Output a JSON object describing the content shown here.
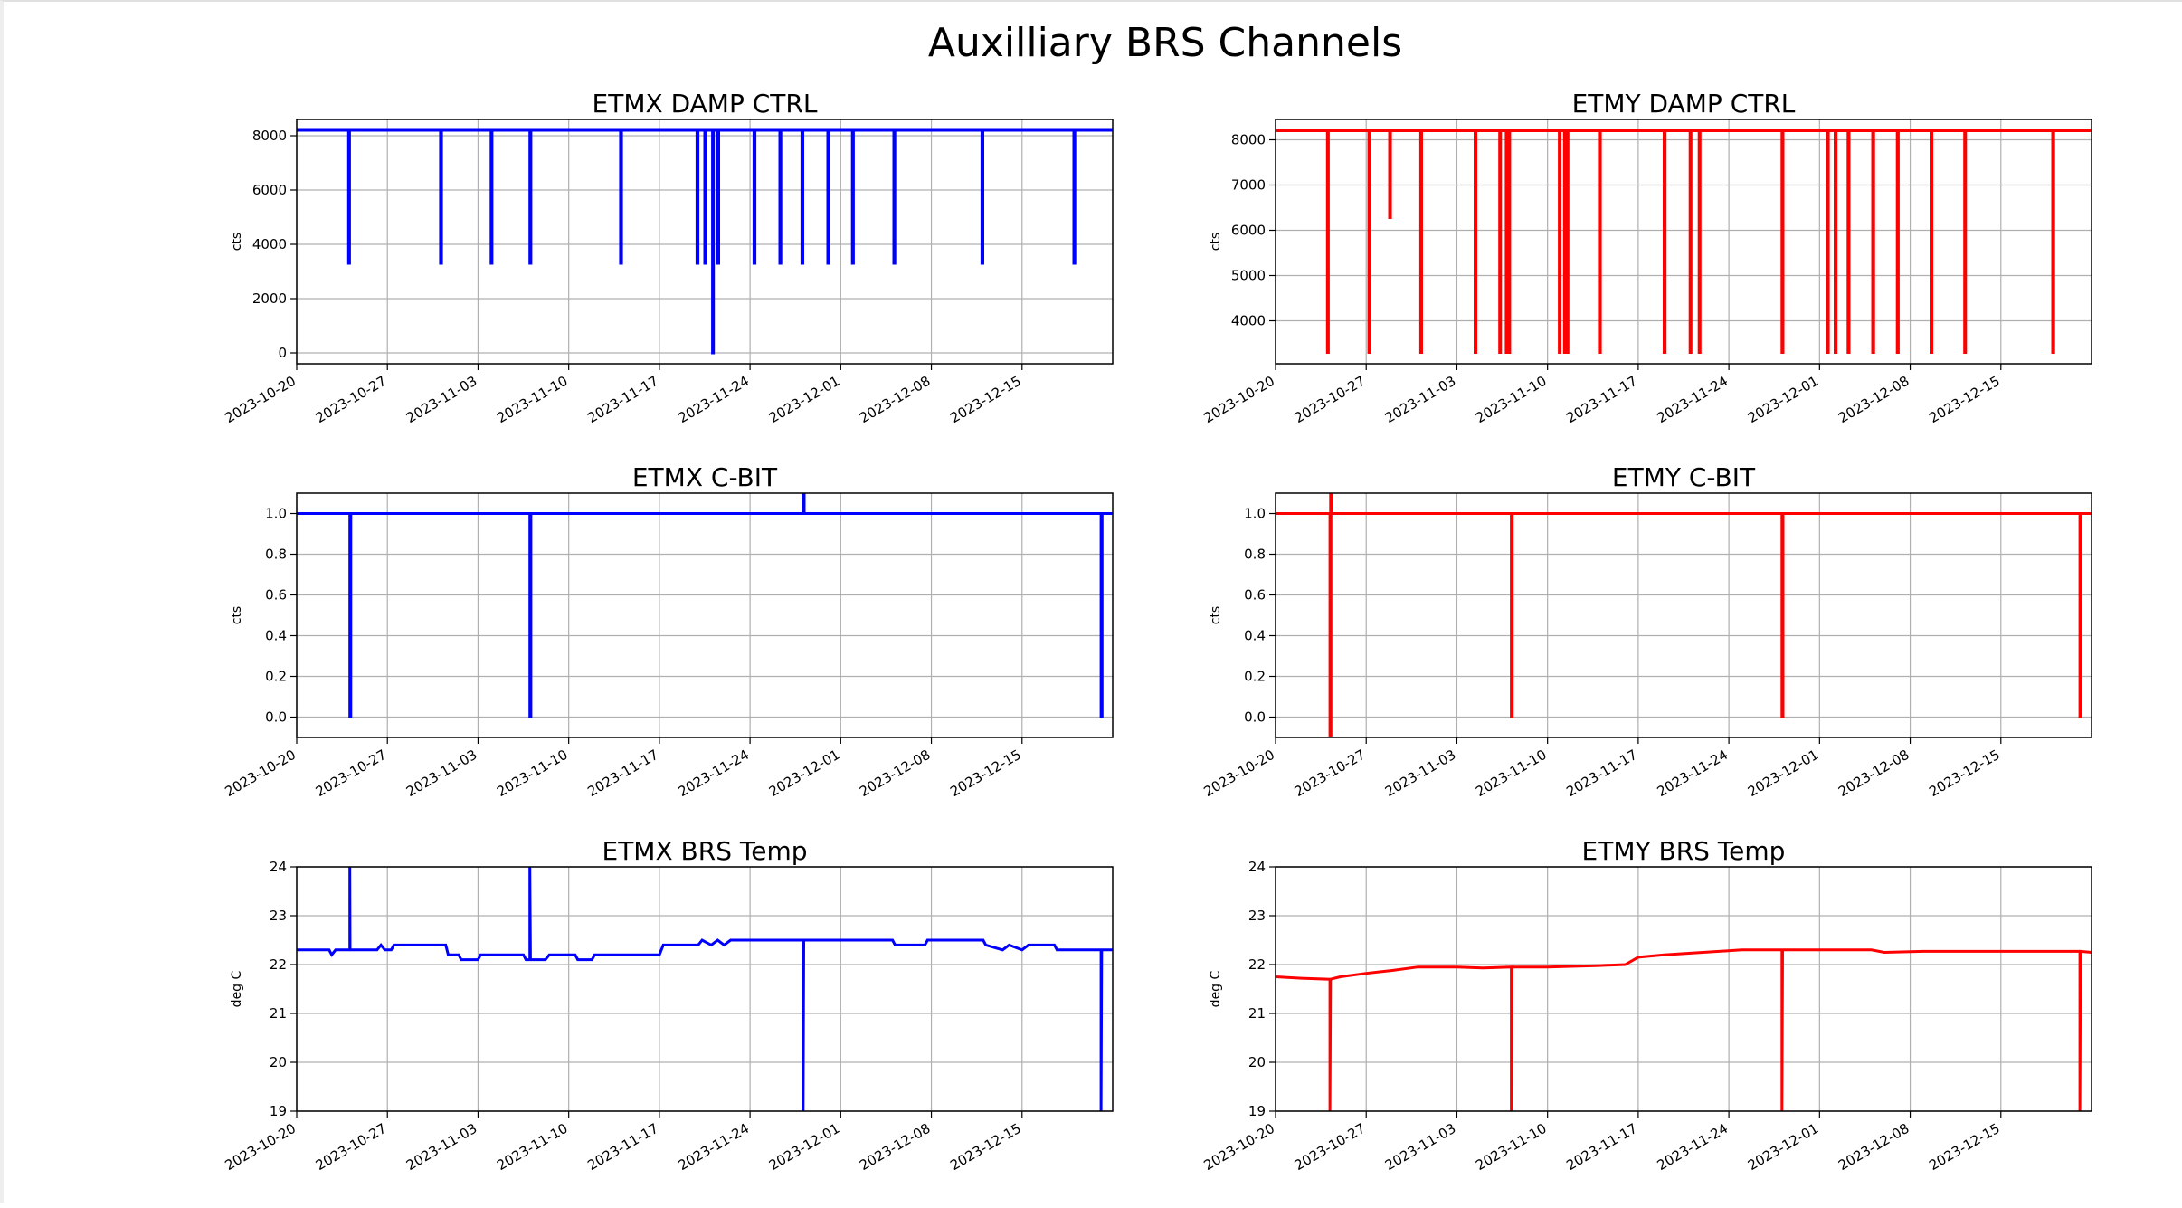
{
  "figure_title": "Auxilliary BRS Channels",
  "chart_data": [
    {
      "type": "line",
      "title": "ETMX DAMP CTRL",
      "ylabel": "cts",
      "color": "#0000ff",
      "x_unit": "days since 2023-10-20",
      "xlim": [
        0,
        63
      ],
      "ylim": [
        -400,
        8600
      ],
      "yticks": [
        0,
        2000,
        4000,
        6000,
        8000
      ],
      "grid": true,
      "baseline": 8200,
      "drops": [
        [
          4.0,
          3300
        ],
        [
          11.1,
          3300
        ],
        [
          15.0,
          3300
        ],
        [
          18.0,
          3300
        ],
        [
          25.0,
          3300
        ],
        [
          30.9,
          3300
        ],
        [
          31.5,
          3300
        ],
        [
          32.1,
          0
        ],
        [
          32.5,
          3300
        ],
        [
          35.3,
          3300
        ],
        [
          37.3,
          3300
        ],
        [
          39.0,
          3300
        ],
        [
          41.0,
          3300
        ],
        [
          42.9,
          3300
        ],
        [
          46.1,
          3300
        ],
        [
          52.9,
          3300
        ],
        [
          60.0,
          3300
        ]
      ]
    },
    {
      "type": "line",
      "title": "ETMY DAMP CTRL",
      "ylabel": "cts",
      "color": "#ff0000",
      "x_unit": "days since 2023-10-20",
      "xlim": [
        0,
        63
      ],
      "ylim": [
        3050,
        8450
      ],
      "yticks": [
        4000,
        5000,
        6000,
        7000,
        8000
      ],
      "grid": true,
      "baseline": 8200,
      "drops": [
        [
          4.0,
          3300
        ],
        [
          7.2,
          3300
        ],
        [
          8.8,
          6280
        ],
        [
          11.2,
          3300
        ],
        [
          15.4,
          3300
        ],
        [
          17.3,
          3300
        ],
        [
          17.8,
          3300
        ],
        [
          18.0,
          3300
        ],
        [
          21.9,
          3300
        ],
        [
          22.3,
          3300
        ],
        [
          22.5,
          3300
        ],
        [
          25.0,
          3300
        ],
        [
          30.0,
          3300
        ],
        [
          32.0,
          3300
        ],
        [
          32.7,
          3300
        ],
        [
          39.1,
          3300
        ],
        [
          42.6,
          3300
        ],
        [
          43.2,
          3300
        ],
        [
          44.2,
          3300
        ],
        [
          46.1,
          3300
        ],
        [
          48.0,
          3300
        ],
        [
          50.6,
          3300
        ],
        [
          53.2,
          3300
        ],
        [
          60.0,
          3300
        ]
      ]
    },
    {
      "type": "line",
      "title": "ETMX C-BIT",
      "ylabel": "cts",
      "color": "#0000ff",
      "x_unit": "days since 2023-10-20",
      "xlim": [
        0,
        63
      ],
      "ylim": [
        -0.1,
        1.1
      ],
      "yticks": [
        0.0,
        0.2,
        0.4,
        0.6,
        0.8,
        1.0
      ],
      "grid": true,
      "baseline": 1.0,
      "drops": [
        [
          4.1,
          0
        ],
        [
          18.0,
          0
        ],
        [
          39.1,
          1.1
        ],
        [
          62.1,
          0
        ]
      ]
    },
    {
      "type": "line",
      "title": "ETMY C-BIT",
      "ylabel": "cts",
      "color": "#ff0000",
      "x_unit": "days since 2023-10-20",
      "xlim": [
        0,
        63
      ],
      "ylim": [
        -0.1,
        1.1
      ],
      "yticks": [
        0.0,
        0.2,
        0.4,
        0.6,
        0.8,
        1.0
      ],
      "grid": true,
      "baseline": 1.0,
      "drops": [
        [
          4.2,
          -0.1
        ],
        [
          4.25,
          1.1
        ],
        [
          18.2,
          0
        ],
        [
          39.1,
          0
        ],
        [
          62.1,
          0
        ]
      ]
    },
    {
      "type": "line",
      "title": "ETMX BRS Temp",
      "ylabel": "deg C",
      "color": "#0000ff",
      "x_unit": "days since 2023-10-20",
      "xlim": [
        0,
        63
      ],
      "ylim": [
        19,
        24
      ],
      "yticks": [
        19,
        20,
        21,
        22,
        23,
        24
      ],
      "grid": true,
      "points": [
        [
          0,
          22.3
        ],
        [
          2.5,
          22.3
        ],
        [
          2.7,
          22.2
        ],
        [
          3.0,
          22.3
        ],
        [
          4.1,
          22.3
        ],
        [
          4.1,
          24
        ],
        [
          4.12,
          22.3
        ],
        [
          6.2,
          22.3
        ],
        [
          6.5,
          22.4
        ],
        [
          6.8,
          22.3
        ],
        [
          7.3,
          22.3
        ],
        [
          7.5,
          22.4
        ],
        [
          11.5,
          22.4
        ],
        [
          11.7,
          22.2
        ],
        [
          12.5,
          22.2
        ],
        [
          12.7,
          22.1
        ],
        [
          14.0,
          22.1
        ],
        [
          14.2,
          22.2
        ],
        [
          17.5,
          22.2
        ],
        [
          17.7,
          22.1
        ],
        [
          18.0,
          22.1
        ],
        [
          18.0,
          24
        ],
        [
          18.05,
          22.1
        ],
        [
          19.2,
          22.1
        ],
        [
          19.5,
          22.2
        ],
        [
          21.5,
          22.2
        ],
        [
          21.7,
          22.1
        ],
        [
          22.8,
          22.1
        ],
        [
          23.0,
          22.2
        ],
        [
          28.0,
          22.2
        ],
        [
          28.3,
          22.4
        ],
        [
          31.0,
          22.4
        ],
        [
          31.3,
          22.5
        ],
        [
          32.0,
          22.4
        ],
        [
          32.5,
          22.5
        ],
        [
          33.0,
          22.4
        ],
        [
          33.5,
          22.5
        ],
        [
          39.1,
          22.5
        ],
        [
          39.1,
          19
        ],
        [
          39.15,
          22.5
        ],
        [
          46.0,
          22.5
        ],
        [
          46.2,
          22.4
        ],
        [
          48.5,
          22.4
        ],
        [
          48.7,
          22.5
        ],
        [
          53.0,
          22.5
        ],
        [
          53.2,
          22.4
        ],
        [
          54.5,
          22.3
        ],
        [
          55,
          22.4
        ],
        [
          56,
          22.3
        ],
        [
          56.5,
          22.4
        ],
        [
          58.5,
          22.4
        ],
        [
          58.7,
          22.3
        ],
        [
          62.1,
          22.3
        ],
        [
          62.1,
          19
        ],
        [
          62.15,
          22.3
        ],
        [
          63,
          22.3
        ]
      ]
    },
    {
      "type": "line",
      "title": "ETMY BRS Temp",
      "ylabel": "deg C",
      "color": "#ff0000",
      "x_unit": "days since 2023-10-20",
      "xlim": [
        0,
        63
      ],
      "ylim": [
        19,
        24
      ],
      "yticks": [
        19,
        20,
        21,
        22,
        23,
        24
      ],
      "grid": true,
      "points": [
        [
          0,
          21.75
        ],
        [
          2,
          21.72
        ],
        [
          4.2,
          21.7
        ],
        [
          4.2,
          19
        ],
        [
          4.25,
          21.7
        ],
        [
          5,
          21.75
        ],
        [
          7,
          21.82
        ],
        [
          9,
          21.88
        ],
        [
          11,
          21.95
        ],
        [
          14,
          21.95
        ],
        [
          16,
          21.93
        ],
        [
          18.2,
          21.95
        ],
        [
          18.2,
          19
        ],
        [
          18.25,
          21.95
        ],
        [
          21,
          21.95
        ],
        [
          25,
          21.98
        ],
        [
          27,
          22.0
        ],
        [
          28,
          22.15
        ],
        [
          30,
          22.2
        ],
        [
          33,
          22.25
        ],
        [
          36,
          22.3
        ],
        [
          39.1,
          22.3
        ],
        [
          39.1,
          19
        ],
        [
          39.15,
          22.3
        ],
        [
          46,
          22.3
        ],
        [
          47,
          22.25
        ],
        [
          50,
          22.27
        ],
        [
          58,
          22.27
        ],
        [
          62.1,
          22.27
        ],
        [
          62.1,
          19
        ],
        [
          62.15,
          22.27
        ],
        [
          63,
          22.25
        ]
      ]
    }
  ],
  "xticks": [
    "2023-10-20",
    "2023-10-27",
    "2023-11-03",
    "2023-11-10",
    "2023-11-17",
    "2023-11-24",
    "2023-12-01",
    "2023-12-08",
    "2023-12-15"
  ],
  "xtick_days": [
    0,
    7,
    14,
    21,
    28,
    35,
    42,
    49,
    56
  ]
}
